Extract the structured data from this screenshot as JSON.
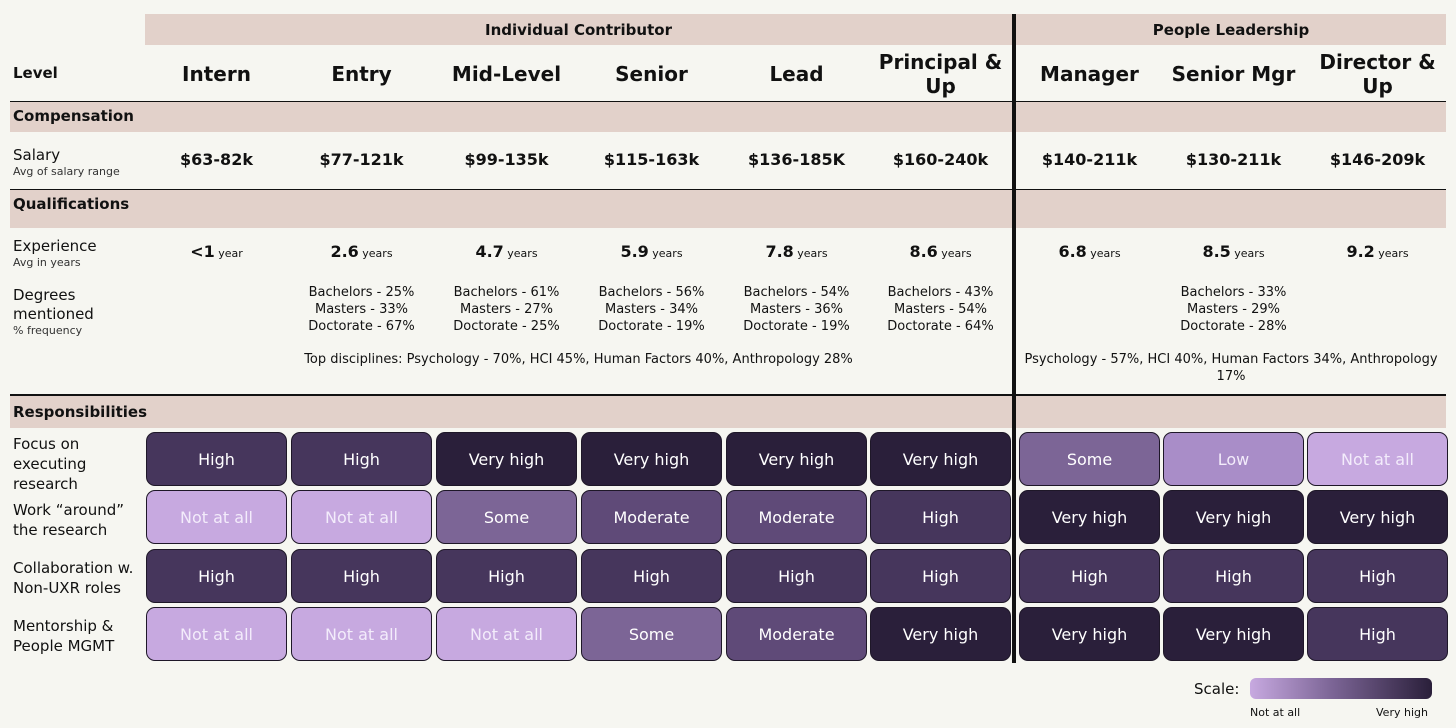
{
  "groups": {
    "ic": "Individual Contributor",
    "pl": "People Leadership"
  },
  "level_label": "Level",
  "levels": [
    "Intern",
    "Entry",
    "Mid-Level",
    "Senior",
    "Lead",
    "Principal & Up",
    "Manager",
    "Senior Mgr",
    "Director & Up"
  ],
  "sections": {
    "compensation": "Compensation",
    "qualifications": "Qualifications",
    "responsibilities": "Responsibilities"
  },
  "salary": {
    "label": "Salary",
    "sub": "Avg of salary range",
    "values": [
      "$63-82k",
      "$77-121k",
      "$99-135k",
      "$115-163k",
      "$136-185K",
      "$160-240k",
      "$140-211k",
      "$130-211k",
      "$146-209k"
    ]
  },
  "experience": {
    "label": "Experience",
    "sub": "Avg in years",
    "values": [
      {
        "num": "<1",
        "unit": "year"
      },
      {
        "num": "2.6",
        "unit": "years"
      },
      {
        "num": "4.7",
        "unit": "years"
      },
      {
        "num": "5.9",
        "unit": "years"
      },
      {
        "num": "7.8",
        "unit": "years"
      },
      {
        "num": "8.6",
        "unit": "years"
      },
      {
        "num": "6.8",
        "unit": "years"
      },
      {
        "num": "8.5",
        "unit": "years"
      },
      {
        "num": "9.2",
        "unit": "years"
      }
    ]
  },
  "degrees": {
    "label_line1": "Degrees",
    "label_line2": "mentioned",
    "sub": "% frequency",
    "columns": [
      {
        "col": 1,
        "lines": [
          "Bachelors - 25%",
          "Masters - 33%",
          "Doctorate - 67%"
        ]
      },
      {
        "col": 2,
        "lines": [
          "Bachelors - 61%",
          "Masters - 27%",
          "Doctorate - 25%"
        ]
      },
      {
        "col": 3,
        "lines": [
          "Bachelors - 56%",
          "Masters - 34%",
          "Doctorate - 19%"
        ]
      },
      {
        "col": 4,
        "lines": [
          "Bachelors - 54%",
          "Masters - 36%",
          "Doctorate - 19%"
        ]
      },
      {
        "col": 5,
        "lines": [
          "Bachelors - 43%",
          "Masters - 54%",
          "Doctorate - 64%"
        ]
      },
      {
        "col": 7,
        "lines": [
          "Bachelors - 33%",
          "Masters - 29%",
          "Doctorate - 28%"
        ]
      }
    ],
    "ic_disciplines": "Top disciplines: Psychology - 70%, HCI 45%, Human Factors 40%, Anthropology 28%",
    "pl_disciplines": "Psychology - 57%, HCI 40%, Human Factors 34%, Anthropology 17%"
  },
  "responsibilities": [
    {
      "label_lines": [
        "Focus on",
        "executing",
        "research"
      ],
      "values": [
        "High",
        "High",
        "Very high",
        "Very high",
        "Very high",
        "Very high",
        "Some",
        "Low",
        "Not at all"
      ]
    },
    {
      "label_lines": [
        "Work “around”",
        "the research"
      ],
      "values": [
        "Not at all",
        "Not at all",
        "Some",
        "Moderate",
        "Moderate",
        "High",
        "Very high",
        "Very high",
        "Very high"
      ]
    },
    {
      "label_lines": [
        "Collaboration w.",
        "Non-UXR roles"
      ],
      "values": [
        "High",
        "High",
        "High",
        "High",
        "High",
        "High",
        "High",
        "High",
        "High"
      ]
    },
    {
      "label_lines": [
        "Mentorship &",
        "People MGMT"
      ],
      "values": [
        "Not at all",
        "Not at all",
        "Not at all",
        "Some",
        "Moderate",
        "Very high",
        "Very high",
        "Very high",
        "High"
      ]
    }
  ],
  "scale": {
    "label": "Scale:",
    "min_label": "Not at all",
    "max_label": "Very high"
  },
  "colors": {
    "header_band": "#e2d1ca",
    "background": "#f6f6f1",
    "Not at all": "#c7a9e0",
    "Low": "#a98dc8",
    "Some": "#7c6596",
    "Moderate": "#5f4a78",
    "High": "#46365c",
    "Very high": "#2a1f3a",
    "light_text": "#f3ecfb",
    "dark_text": "#ffffff"
  }
}
